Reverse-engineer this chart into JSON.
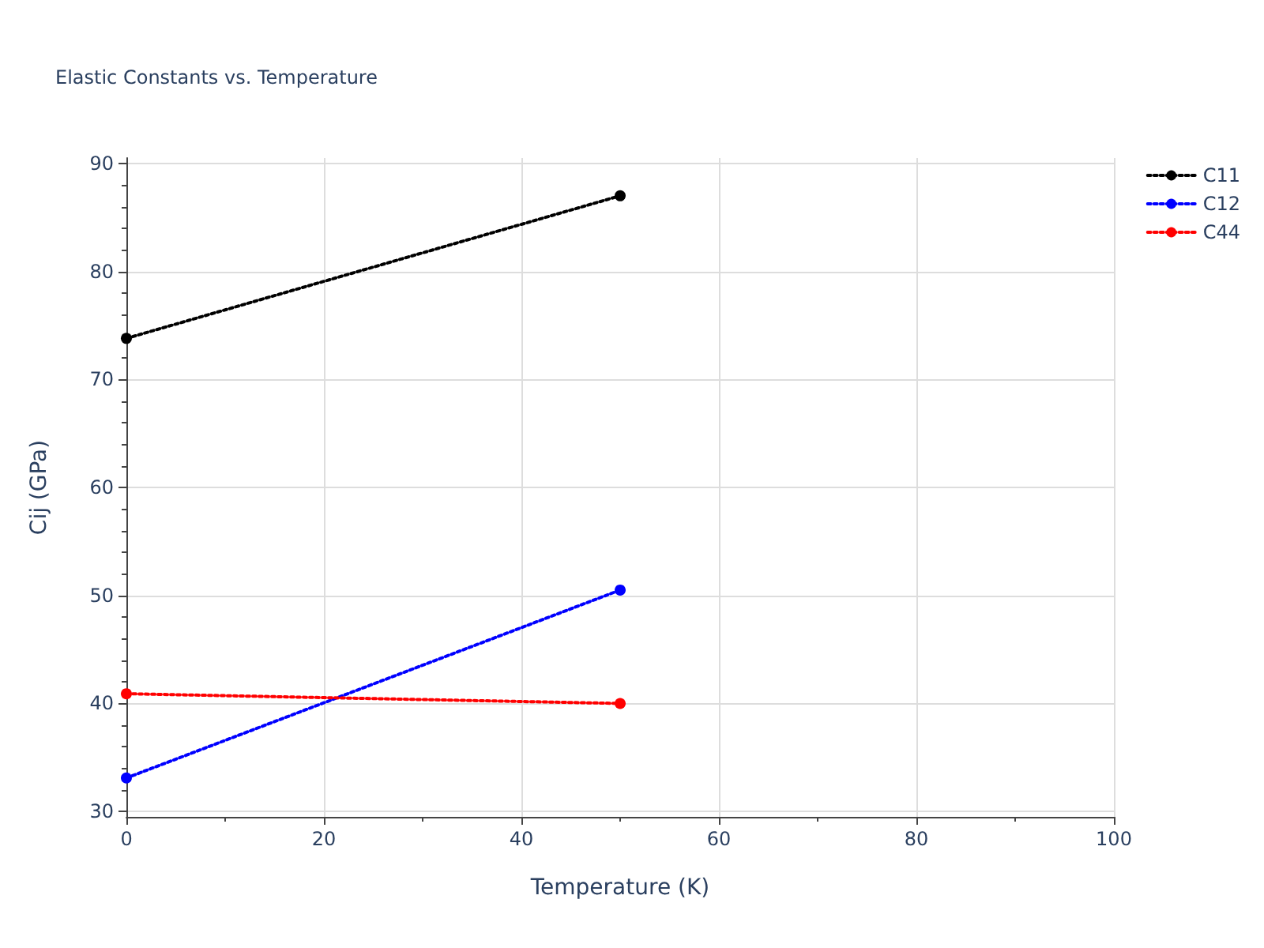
{
  "chart_data": {
    "type": "line",
    "title": "Elastic Constants vs. Temperature",
    "xlabel": "Temperature (K)",
    "ylabel": "Cij (GPa)",
    "x": [
      0,
      50
    ],
    "series": [
      {
        "name": "C11",
        "color": "#000000",
        "values": [
          73.8,
          87.0
        ]
      },
      {
        "name": "C12",
        "color": "#0000ff",
        "values": [
          33.1,
          50.5
        ]
      },
      {
        "name": "C44",
        "color": "#ff0000",
        "values": [
          40.9,
          40.0
        ]
      }
    ],
    "xlim": [
      0,
      100
    ],
    "xticks": [
      0,
      20,
      40,
      60,
      80,
      100
    ],
    "ylim": [
      29.5,
      90.5
    ],
    "yticks": [
      30,
      40,
      50,
      60,
      70,
      80,
      90
    ],
    "grid": true,
    "legend": "top right",
    "marker": "circle",
    "line_style": "dotted"
  }
}
